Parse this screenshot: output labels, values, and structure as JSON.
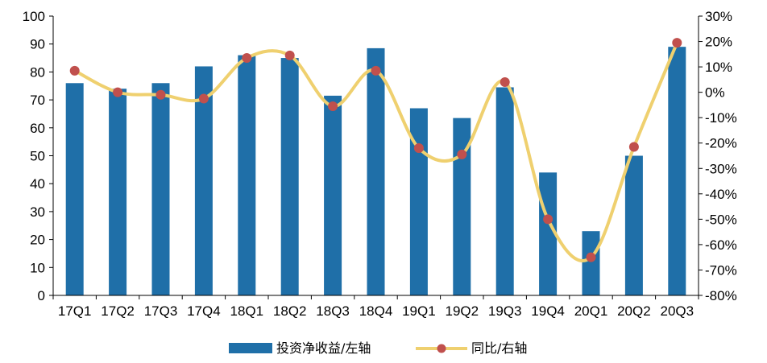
{
  "chart_data": {
    "type": "bar",
    "categories": [
      "17Q1",
      "17Q2",
      "17Q3",
      "17Q4",
      "18Q1",
      "18Q2",
      "18Q3",
      "18Q4",
      "19Q1",
      "19Q2",
      "19Q3",
      "19Q4",
      "20Q1",
      "20Q2",
      "20Q3"
    ],
    "series": [
      {
        "name": "投资净收益/左轴",
        "type": "bar",
        "axis": "left",
        "values": [
          76,
          74,
          76,
          82,
          86,
          85,
          71.5,
          88.5,
          67,
          63.5,
          74.5,
          44,
          23,
          50,
          89
        ]
      },
      {
        "name": "同比/右轴",
        "type": "line",
        "axis": "right",
        "smooth": true,
        "values": [
          8.5,
          0,
          -1,
          -2.5,
          13.5,
          14.5,
          -5.5,
          8.5,
          -22,
          -24.5,
          4,
          -50,
          -65,
          -21.5,
          19.5
        ]
      }
    ],
    "y_left": {
      "min": 0,
      "max": 100,
      "step": 10
    },
    "y_right": {
      "min": -80,
      "max": 30,
      "step": 10,
      "format": "percent"
    },
    "grid": false,
    "legend_position": "bottom",
    "colors": {
      "bar": "#1f6fa8",
      "line": "#efd06f",
      "marker": "#c0504d",
      "axis": "#000000"
    }
  }
}
